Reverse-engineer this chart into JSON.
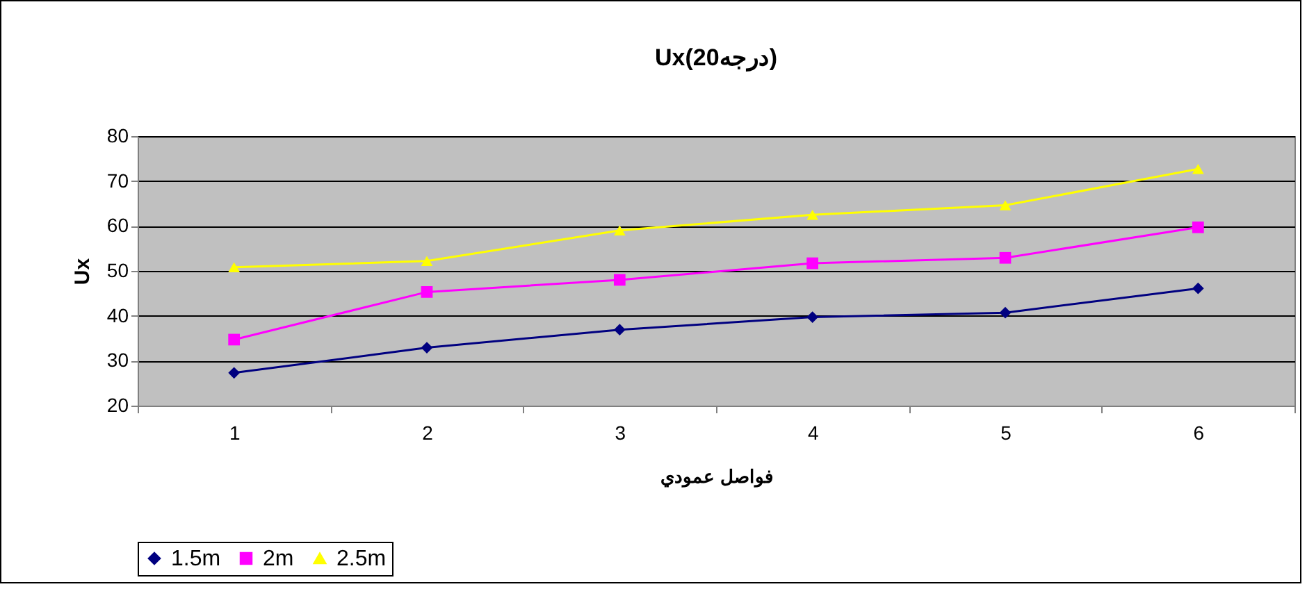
{
  "chart_data": {
    "type": "line",
    "title": "Ux(20درجه)",
    "xlabel": "فواصل عمودي",
    "ylabel": "Ux",
    "categories": [
      "1",
      "2",
      "3",
      "4",
      "5",
      "6"
    ],
    "series": [
      {
        "name": "1.5m",
        "color": "#000080",
        "marker": "diamond",
        "values": [
          27.3,
          32.9,
          36.9,
          39.7,
          40.7,
          46.1
        ]
      },
      {
        "name": "2m",
        "color": "#ff00ff",
        "marker": "square",
        "values": [
          34.7,
          45.3,
          48.0,
          51.7,
          52.9,
          59.7
        ]
      },
      {
        "name": "2.5m",
        "color": "#ffff00",
        "marker": "triangle",
        "values": [
          50.8,
          52.2,
          59.0,
          62.5,
          64.6,
          72.7
        ]
      }
    ],
    "ylim": [
      20,
      80
    ],
    "yticks": [
      20,
      30,
      40,
      50,
      60,
      70,
      80
    ],
    "grid": "y",
    "legend": "bottom",
    "line_style": "solid"
  }
}
